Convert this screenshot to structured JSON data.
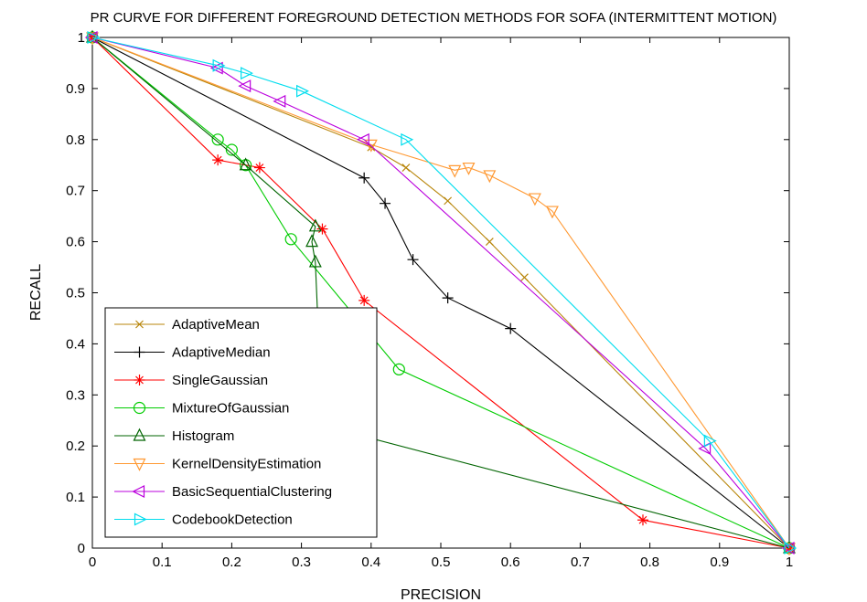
{
  "chart_data": {
    "type": "line",
    "title": "PR CURVE FOR DIFFERENT FOREGROUND DETECTION METHODS FOR SOFA (INTERMITTENT MOTION)",
    "xlabel": "PRECISION",
    "ylabel": "RECALL",
    "xlim": [
      0,
      1
    ],
    "ylim": [
      0,
      1
    ],
    "xticks": [
      "0",
      "0.1",
      "0.2",
      "0.3",
      "0.4",
      "0.5",
      "0.6",
      "0.7",
      "0.8",
      "0.9",
      "1"
    ],
    "yticks": [
      "0",
      "0.1",
      "0.2",
      "0.3",
      "0.4",
      "0.5",
      "0.6",
      "0.7",
      "0.8",
      "0.9",
      "1"
    ],
    "grid": false,
    "legend_position": "bottom-left",
    "series": [
      {
        "name": "AdaptiveMean",
        "color": "#b8860b",
        "marker": "x",
        "x": [
          0,
          0.4,
          0.45,
          0.51,
          0.57,
          0.62,
          1.0
        ],
        "y": [
          1,
          0.785,
          0.745,
          0.68,
          0.6,
          0.53,
          0
        ]
      },
      {
        "name": "AdaptiveMedian",
        "color": "#000000",
        "marker": "plus",
        "x": [
          0,
          0.39,
          0.42,
          0.46,
          0.51,
          0.6,
          1.0
        ],
        "y": [
          1,
          0.725,
          0.675,
          0.565,
          0.49,
          0.43,
          0
        ]
      },
      {
        "name": "SingleGaussian",
        "color": "#ff0000",
        "marker": "star",
        "x": [
          0,
          0.18,
          0.24,
          0.33,
          0.39,
          0.79,
          1.0
        ],
        "y": [
          1,
          0.76,
          0.745,
          0.625,
          0.485,
          0.055,
          0
        ]
      },
      {
        "name": "MixtureOfGaussian",
        "color": "#00cc00",
        "marker": "circle",
        "x": [
          0,
          0.18,
          0.2,
          0.22,
          0.285,
          0.44,
          1.0
        ],
        "y": [
          1,
          0.8,
          0.78,
          0.75,
          0.605,
          0.35,
          0
        ]
      },
      {
        "name": "Histogram",
        "color": "#006400",
        "marker": "triangle-up",
        "x": [
          0,
          0.22,
          0.32,
          0.315,
          0.32,
          0.33,
          1.0
        ],
        "y": [
          1,
          0.75,
          0.63,
          0.6,
          0.56,
          0.24,
          0
        ]
      },
      {
        "name": "KernelDensityEstimation",
        "color": "#ff9933",
        "marker": "triangle-down",
        "x": [
          0,
          0.4,
          0.52,
          0.54,
          0.57,
          0.635,
          0.66,
          1.0
        ],
        "y": [
          1,
          0.79,
          0.74,
          0.745,
          0.73,
          0.685,
          0.66,
          0
        ]
      },
      {
        "name": "BasicSequentialClustering",
        "color": "#bb00dd",
        "marker": "triangle-left",
        "x": [
          0,
          0.18,
          0.22,
          0.27,
          0.39,
          0.88,
          1.0
        ],
        "y": [
          1,
          0.94,
          0.905,
          0.875,
          0.8,
          0.195,
          0
        ]
      },
      {
        "name": "CodebookDetection",
        "color": "#00ddee",
        "marker": "triangle-right",
        "x": [
          0,
          0.18,
          0.22,
          0.3,
          0.45,
          0.885,
          1.0
        ],
        "y": [
          1,
          0.945,
          0.93,
          0.895,
          0.8,
          0.21,
          0
        ]
      }
    ]
  }
}
